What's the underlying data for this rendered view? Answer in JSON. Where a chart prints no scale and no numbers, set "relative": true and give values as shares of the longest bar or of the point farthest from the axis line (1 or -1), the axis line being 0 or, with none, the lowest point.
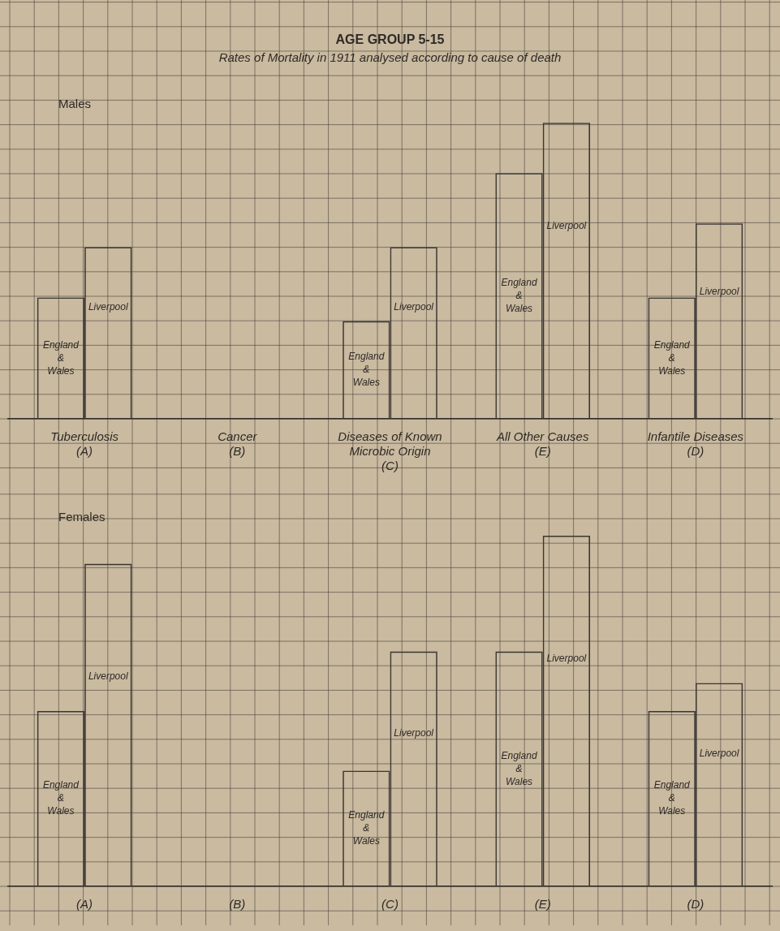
{
  "chart_data": [
    {
      "type": "bar",
      "title": "AGE GROUP 5-15",
      "subtitle": "Rates of Mortality in 1911 analysed according to cause of death",
      "annotations": [
        "Males"
      ],
      "categories": [
        "Tuberculosis (A)",
        "Cancer (B)",
        "Diseases of Known Microbic Origin (C)",
        "All Other Causes (E)",
        "Infantile Diseases (D)"
      ],
      "series": [
        {
          "name": "England & Wales",
          "color": "#3a3632",
          "values": [
            0.41,
            0,
            0.33,
            0.83,
            0.41
          ]
        },
        {
          "name": "Liverpool",
          "color": "#3a3632",
          "values": [
            0.58,
            0,
            0.58,
            1,
            0.66
          ]
        }
      ],
      "relative": true,
      "grid": true
    },
    {
      "type": "bar",
      "annotations": [
        "Females"
      ],
      "categories": [
        "(A)",
        "(B)",
        "(C)",
        "(E)",
        "(D)"
      ],
      "series": [
        {
          "name": "England & Wales",
          "color": "#3a3632",
          "values": [
            0.5,
            0,
            0.33,
            0.67,
            0.5
          ]
        },
        {
          "name": "Liverpool",
          "color": "#3a3632",
          "values": [
            0.92,
            0,
            0.67,
            1,
            0.58
          ]
        }
      ],
      "relative": true,
      "grid": true
    }
  ]
}
